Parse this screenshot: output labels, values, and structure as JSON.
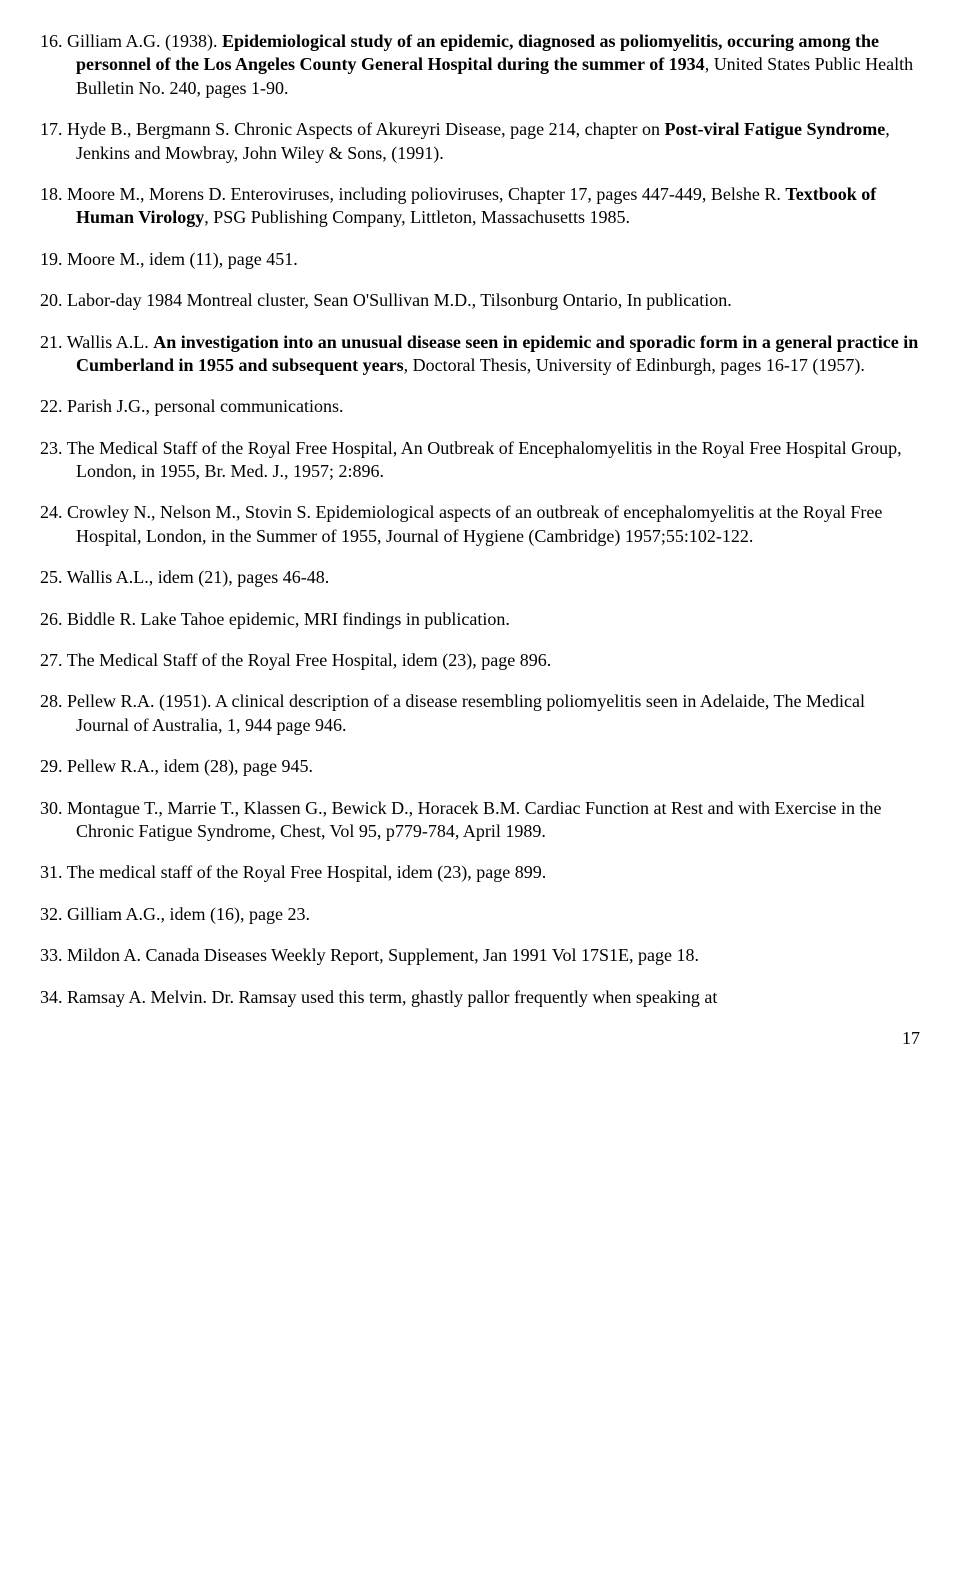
{
  "page_number": "17",
  "references": [
    {
      "pre": "Gilliam A.G. (1938). ",
      "bold": "Epidemiological study of an epidemic, diagnosed as poliomyelitis, occuring among the personnel of the Los Angeles County General Hospital during the summer of 1934",
      "post": ", United States Public Health Bulletin No. 240, pages 1-90."
    },
    {
      "pre": "Hyde B., Bergmann S. Chronic Aspects of Akureyri Disease, page 214, chapter on ",
      "bold": "Post-viral Fatigue Syndrome",
      "post": ", Jenkins and Mowbray, John Wiley & Sons, (1991)."
    },
    {
      "pre": "Moore M., Morens D. Enteroviruses, including polioviruses, Chapter 17, pages 447-449, Belshe R. ",
      "bold": "Textbook of Human Virology",
      "post": ", PSG Publishing Company, Littleton, Massachusetts 1985."
    },
    {
      "pre": "Moore M., idem (11), page 451.",
      "bold": "",
      "post": ""
    },
    {
      "pre": "Labor-day 1984 Montreal cluster, Sean O'Sullivan M.D., Tilsonburg Ontario, In publication.",
      "bold": "",
      "post": ""
    },
    {
      "pre": "Wallis A.L. ",
      "bold": "An investigation into an unusual disease seen in epidemic and sporadic form in a general practice in Cumberland in 1955 and subsequent years",
      "post": ", Doctoral Thesis, University of Edinburgh, pages 16-17 (1957)."
    },
    {
      "pre": "Parish J.G., personal communications.",
      "bold": "",
      "post": ""
    },
    {
      "pre": "The Medical Staff of the Royal Free Hospital, An Outbreak of Encephalomyelitis in the Royal Free Hospital Group, London, in 1955, Br. Med. J., 1957; 2:896.",
      "bold": "",
      "post": ""
    },
    {
      "pre": "Crowley N., Nelson M., Stovin S. Epidemiological aspects of an outbreak of encephalomyelitis at the Royal Free Hospital, London, in the Summer of 1955, Journal of Hygiene (Cambridge) 1957;55:102-122.",
      "bold": "",
      "post": ""
    },
    {
      "pre": "Wallis A.L., idem (21), pages 46-48.",
      "bold": "",
      "post": ""
    },
    {
      "pre": "Biddle R. Lake Tahoe epidemic, MRI findings in publication.",
      "bold": "",
      "post": ""
    },
    {
      "pre": "The Medical Staff of the Royal Free Hospital, idem (23), page 896.",
      "bold": "",
      "post": ""
    },
    {
      "pre": "Pellew R.A. (1951). A clinical description of a disease resembling poliomyelitis seen in Adelaide, The Medical Journal of Australia, 1, 944 page 946.",
      "bold": "",
      "post": ""
    },
    {
      "pre": "Pellew R.A., idem (28), page 945.",
      "bold": "",
      "post": ""
    },
    {
      "pre": "Montague T., Marrie T., Klassen G., Bewick D., Horacek B.M. Cardiac Function at Rest and with Exercise in the Chronic Fatigue Syndrome, Chest, Vol 95, p779-784, April 1989.",
      "bold": "",
      "post": ""
    },
    {
      "pre": "The medical staff of the Royal Free Hospital, idem (23), page 899.",
      "bold": "",
      "post": ""
    },
    {
      "pre": "Gilliam A.G., idem (16), page 23.",
      "bold": "",
      "post": ""
    },
    {
      "pre": "Mildon A. Canada Diseases Weekly Report, Supplement, Jan 1991 Vol 17S1E, page 18.",
      "bold": "",
      "post": ""
    },
    {
      "pre": "Ramsay A. Melvin. Dr. Ramsay used this term, ghastly pallor frequently when speaking at",
      "bold": "",
      "post": ""
    }
  ]
}
